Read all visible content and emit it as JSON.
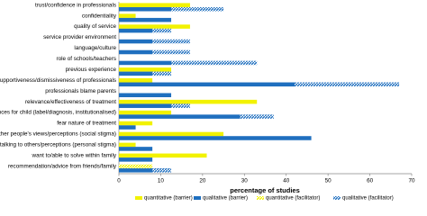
{
  "chart_data": {
    "type": "bar",
    "orientation": "horizontal",
    "stacked": true,
    "x_label": "percentage of studies",
    "categories": [
      "trust/confidence in professionals",
      "confidentiality",
      "quality of service",
      "service provider environment",
      "language/culture",
      "role of schools/teachers",
      "previous experience",
      "supportiveness/dismissiveness of professionals",
      "professionals blame parents",
      "relevance/effectiveness of treatment",
      "consequences for child (label/diagnosis, institutionalised)",
      "fear nature of treatment",
      "other people's views/perceptions (social stigma)",
      "discomfort talking to others/perceptions (personal stigma)",
      "want to/able to solve within family",
      "recommendation/advice from friends/family"
    ],
    "series": [
      {
        "name": "quantitative (barrier)",
        "color": "#f2f200",
        "hatched": false,
        "row": "upper",
        "values": [
          17,
          4,
          17,
          0,
          0,
          0,
          12.5,
          8,
          0,
          33,
          12.5,
          8,
          25,
          4,
          21,
          0
        ]
      },
      {
        "name": "qualitative (barrier)",
        "color": "#1f6fbf",
        "hatched": false,
        "row": "lower",
        "values": [
          12.5,
          12.5,
          8,
          8,
          8,
          12.5,
          8,
          42,
          12.5,
          12.5,
          29,
          4,
          46,
          8,
          8,
          8
        ]
      },
      {
        "name": "quantitative (facilitator)",
        "color": "#f2f200",
        "hatched": true,
        "row": "upper",
        "values": [
          0,
          0,
          0,
          0,
          0,
          0,
          0,
          0,
          0,
          0,
          0,
          0,
          0,
          0,
          0,
          8
        ]
      },
      {
        "name": "qualitative (facilitator)",
        "color": "#1f6fbf",
        "hatched": true,
        "row": "lower",
        "values": [
          12.5,
          0,
          4.5,
          9,
          9,
          20.5,
          4.5,
          25,
          0,
          4.5,
          8,
          0,
          0,
          0,
          0,
          4.5
        ]
      }
    ],
    "xlim": [
      0,
      70
    ],
    "xticks": [
      0,
      10,
      20,
      30,
      40,
      50,
      60,
      70
    ]
  }
}
